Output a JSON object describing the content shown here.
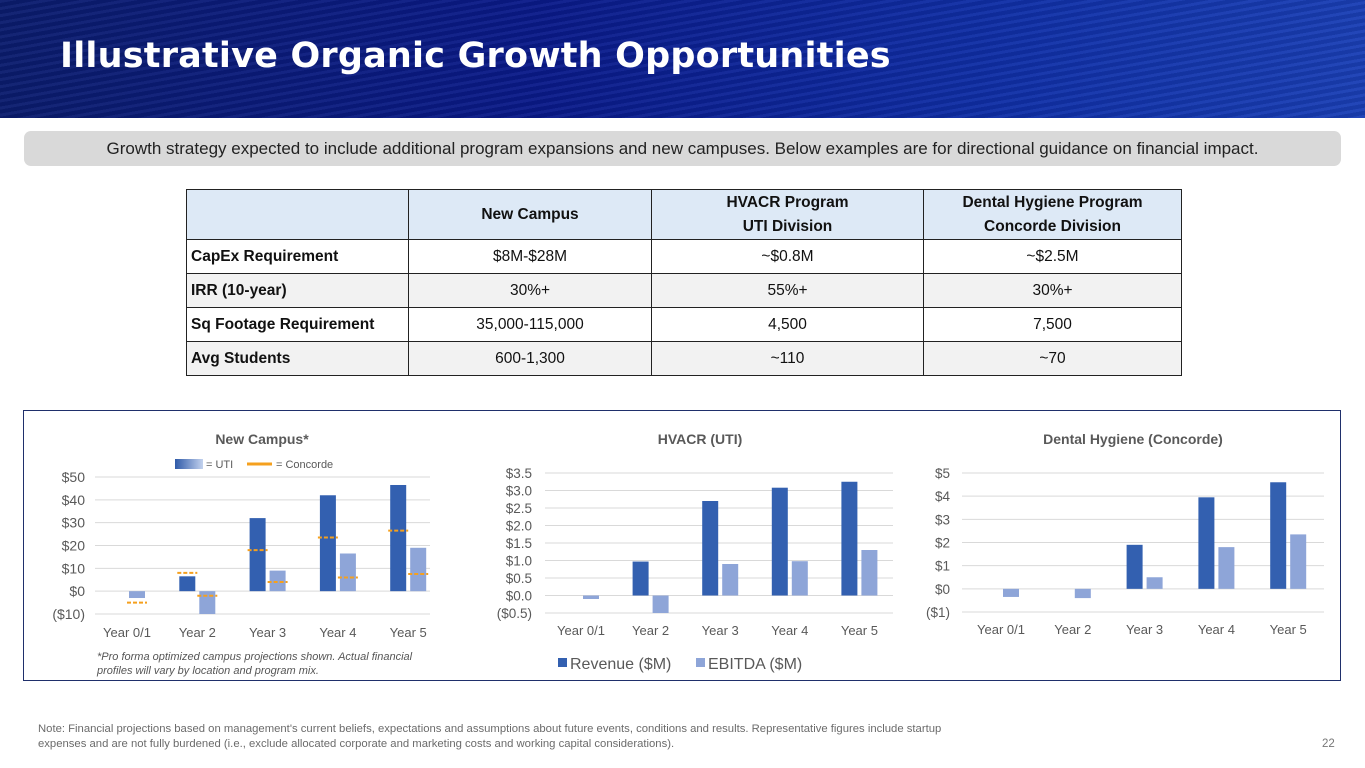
{
  "header": {
    "title": "Illustrative Organic Growth Opportunities"
  },
  "subtitle": "Growth strategy expected to include additional program expansions and new campuses. Below examples are for directional guidance on financial impact.",
  "table": {
    "columns": [
      "",
      "New Campus",
      "HVACR Program\nUTI Division",
      "Dental Hygiene Program\nConcorde Division"
    ],
    "column_lines": [
      [
        "New Campus"
      ],
      [
        "HVACR Program",
        "UTI Division"
      ],
      [
        "Dental Hygiene Program",
        "Concorde Division"
      ]
    ],
    "rows": [
      {
        "label": "CapEx Requirement",
        "cells": [
          "$8M-$28M",
          "~$0.8M",
          "~$2.5M"
        ]
      },
      {
        "label": "IRR (10-year)",
        "cells": [
          "30%+",
          "55%+",
          "30%+"
        ]
      },
      {
        "label": "Sq Footage Requirement",
        "cells": [
          "35,000-115,000",
          "4,500",
          "7,500"
        ]
      },
      {
        "label": "Avg Students",
        "cells": [
          "600-1,300",
          "~110",
          "~70"
        ]
      }
    ]
  },
  "colors": {
    "revenue": "#3360b0",
    "ebitda": "#8ea5d8",
    "concorde": "#f5a01e",
    "banner": "#0a1a8a",
    "border": "#1f2f6b"
  },
  "chart_data": [
    {
      "type": "bar",
      "title": "New Campus*",
      "categories": [
        "Year 0/1",
        "Year 2",
        "Year 3",
        "Year 4",
        "Year 5"
      ],
      "ylim": [
        -10,
        50
      ],
      "yticks": [
        "($10)",
        "$0",
        "$10",
        "$20",
        "$30",
        "$40",
        "$50"
      ],
      "ytick_values": [
        -10,
        0,
        10,
        20,
        30,
        40,
        50
      ],
      "grid": true,
      "legend": {
        "position": "top",
        "entries": [
          "= UTI",
          "= Concorde"
        ]
      },
      "series": [
        {
          "key": "revenue",
          "values": [
            0,
            6.5,
            32,
            42,
            46.5
          ]
        },
        {
          "key": "ebitda",
          "values": [
            -3,
            -10,
            9,
            16.5,
            19
          ]
        }
      ],
      "concorde_markers": {
        "revenue": [
          null,
          8,
          18,
          23.5,
          26.5
        ],
        "ebitda": [
          -5,
          -2,
          4,
          6,
          7.5
        ]
      },
      "footnote": "*Pro forma optimized campus projections shown. Actual financial profiles will vary by location and program mix."
    },
    {
      "type": "bar",
      "title": "HVACR (UTI)",
      "categories": [
        "Year 0/1",
        "Year 2",
        "Year 3",
        "Year 4",
        "Year 5"
      ],
      "ylim": [
        -0.5,
        3.5
      ],
      "yticks": [
        "($0.5)",
        "$0.0",
        "$0.5",
        "$1.0",
        "$1.5",
        "$2.0",
        "$2.5",
        "$3.0",
        "$3.5"
      ],
      "ytick_values": [
        -0.5,
        0,
        0.5,
        1,
        1.5,
        2,
        2.5,
        3,
        3.5
      ],
      "grid": true,
      "legend": {
        "position": "bottom",
        "entries": [
          "Revenue ($M)",
          "EBITDA ($M)"
        ]
      },
      "series": [
        {
          "key": "revenue",
          "name": "Revenue ($M)",
          "values": [
            0,
            0.97,
            2.7,
            3.08,
            3.25
          ]
        },
        {
          "key": "ebitda",
          "name": "EBITDA ($M)",
          "values": [
            -0.1,
            -0.5,
            0.9,
            0.98,
            1.3
          ]
        }
      ]
    },
    {
      "type": "bar",
      "title": "Dental Hygiene (Concorde)",
      "categories": [
        "Year 0/1",
        "Year 2",
        "Year 3",
        "Year 4",
        "Year 5"
      ],
      "ylim": [
        -1,
        5
      ],
      "yticks": [
        "($1)",
        "$0",
        "$1",
        "$2",
        "$3",
        "$4",
        "$5"
      ],
      "ytick_values": [
        -1,
        0,
        1,
        2,
        3,
        4,
        5
      ],
      "grid": true,
      "series": [
        {
          "key": "revenue",
          "values": [
            0,
            0,
            1.9,
            3.95,
            4.6
          ]
        },
        {
          "key": "ebitda",
          "values": [
            -0.35,
            -0.4,
            0.5,
            1.8,
            2.35
          ]
        }
      ]
    }
  ],
  "note": "Note: Financial projections based on management's current beliefs, expectations and assumptions about future events, conditions and results. Representative figures include startup expenses and are not fully burdened (i.e., exclude allocated corporate and marketing costs and working capital considerations).",
  "page_number": "22"
}
